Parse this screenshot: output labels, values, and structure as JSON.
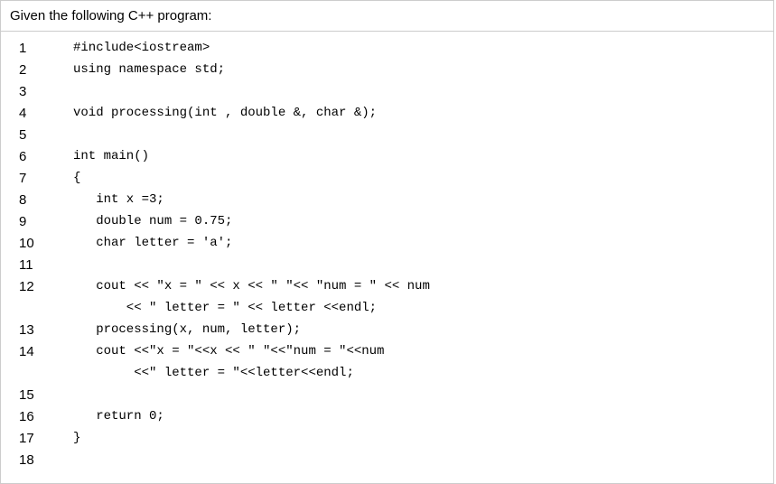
{
  "prompt": "Given the following C++ program:",
  "lines": [
    {
      "num": "1",
      "code": "#include<iostream>"
    },
    {
      "num": "2",
      "code": "using namespace std;"
    },
    {
      "num": "3",
      "code": ""
    },
    {
      "num": "4",
      "code": "void processing(int , double &, char &);"
    },
    {
      "num": "5",
      "code": ""
    },
    {
      "num": "6",
      "code": "int main()"
    },
    {
      "num": "7",
      "code": "{"
    },
    {
      "num": "8",
      "code": "   int x =3;"
    },
    {
      "num": "9",
      "code": "   double num = 0.75;"
    },
    {
      "num": "10",
      "code": "   char letter = 'a';"
    },
    {
      "num": "11",
      "code": ""
    },
    {
      "num": "12",
      "code": "   cout << \"x = \" << x << \" \"<< \"num = \" << num",
      "cont": "       << \" letter = \" << letter <<endl;"
    },
    {
      "num": "13",
      "code": "   processing(x, num, letter);"
    },
    {
      "num": "14",
      "code": "   cout <<\"x = \"<<x << \" \"<<\"num = \"<<num",
      "cont": "        <<\" letter = \"<<letter<<endl;"
    },
    {
      "num": "15",
      "code": ""
    },
    {
      "num": "16",
      "code": "   return 0;"
    },
    {
      "num": "17",
      "code": "}"
    },
    {
      "num": "18",
      "code": ""
    }
  ],
  "styling": {
    "background": "#ffffff",
    "border_color": "#cccccc",
    "text_color": "#000000",
    "prompt_fontsize": 15,
    "linenum_fontsize": 15,
    "code_fontsize": 14,
    "code_font": "Courier New",
    "prompt_font": "Arial"
  }
}
